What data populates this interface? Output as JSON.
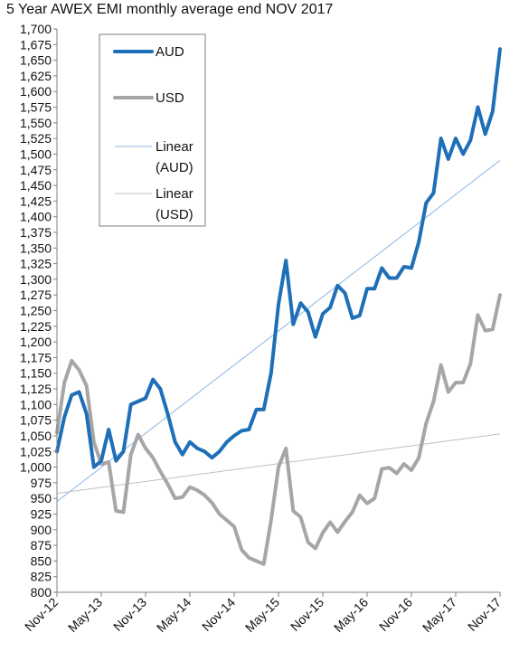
{
  "chart_data": {
    "type": "line",
    "title": "5 Year AWEX EMI monthly average end NOV 2017",
    "xlabel": "",
    "ylabel": "",
    "ylim": [
      800,
      1700
    ],
    "y_step": 25,
    "grid": false,
    "legend_position": "top-left",
    "x_tick_labels": [
      "Nov-12",
      "May-13",
      "Nov-13",
      "May-14",
      "Nov-14",
      "May-15",
      "Nov-15",
      "May-16",
      "Nov-16",
      "May-17",
      "Nov-17"
    ],
    "x": [
      "Nov-12",
      "Dec-12",
      "Jan-13",
      "Feb-13",
      "Mar-13",
      "Apr-13",
      "May-13",
      "Jun-13",
      "Jul-13",
      "Aug-13",
      "Sep-13",
      "Oct-13",
      "Nov-13",
      "Dec-13",
      "Jan-14",
      "Feb-14",
      "Mar-14",
      "Apr-14",
      "May-14",
      "Jun-14",
      "Jul-14",
      "Aug-14",
      "Sep-14",
      "Oct-14",
      "Nov-14",
      "Dec-14",
      "Jan-15",
      "Feb-15",
      "Mar-15",
      "Apr-15",
      "May-15",
      "Jun-15",
      "Jul-15",
      "Aug-15",
      "Sep-15",
      "Oct-15",
      "Nov-15",
      "Dec-15",
      "Jan-16",
      "Feb-16",
      "Mar-16",
      "Apr-16",
      "May-16",
      "Jun-16",
      "Jul-16",
      "Aug-16",
      "Sep-16",
      "Oct-16",
      "Nov-16",
      "Dec-16",
      "Jan-17",
      "Feb-17",
      "Mar-17",
      "Apr-17",
      "May-17",
      "Jun-17",
      "Jul-17",
      "Aug-17",
      "Sep-17",
      "Oct-17",
      "Nov-17"
    ],
    "series": [
      {
        "name": "AUD",
        "color": "#1f6fb8",
        "line_width": 4,
        "values": [
          1025,
          1080,
          1115,
          1120,
          1085,
          1000,
          1010,
          1060,
          1010,
          1025,
          1100,
          1105,
          1110,
          1140,
          1125,
          1085,
          1040,
          1020,
          1040,
          1030,
          1025,
          1015,
          1025,
          1040,
          1050,
          1058,
          1060,
          1092,
          1092,
          1150,
          1260,
          1330,
          1228,
          1262,
          1248,
          1208,
          1245,
          1255,
          1290,
          1278,
          1238,
          1242,
          1285,
          1285,
          1318,
          1302,
          1302,
          1320,
          1318,
          1360,
          1422,
          1438,
          1525,
          1492,
          1525,
          1500,
          1522,
          1575,
          1532,
          1568,
          1668
        ]
      },
      {
        "name": "USD",
        "color": "#a6a6a6",
        "line_width": 4,
        "values": [
          1055,
          1135,
          1170,
          1155,
          1130,
          1040,
          1005,
          1008,
          930,
          928,
          1020,
          1052,
          1030,
          1015,
          993,
          973,
          950,
          952,
          968,
          963,
          955,
          943,
          925,
          915,
          905,
          868,
          855,
          850,
          845,
          915,
          1000,
          1030,
          930,
          920,
          880,
          870,
          895,
          912,
          896,
          913,
          928,
          955,
          942,
          950,
          997,
          999,
          990,
          1005,
          995,
          1015,
          1070,
          1105,
          1163,
          1120,
          1135,
          1135,
          1165,
          1243,
          1218,
          1220,
          1275
        ]
      }
    ],
    "trendlines": [
      {
        "name": "Linear (AUD)",
        "color": "#8db4e2",
        "line_width": 1,
        "start": 945,
        "end": 1490
      },
      {
        "name": "Linear (USD)",
        "color": "#bfbfbf",
        "line_width": 1,
        "start": 958,
        "end": 1053
      }
    ],
    "legend": [
      {
        "label": "AUD",
        "style": "thick",
        "color": "#1f6fb8"
      },
      {
        "label": "USD",
        "style": "thick",
        "color": "#a6a6a6"
      },
      {
        "label": "Linear",
        "label2": "(AUD)",
        "style": "thin",
        "color": "#8db4e2"
      },
      {
        "label": "Linear",
        "label2": "(USD)",
        "style": "thin",
        "color": "#bfbfbf"
      }
    ]
  }
}
